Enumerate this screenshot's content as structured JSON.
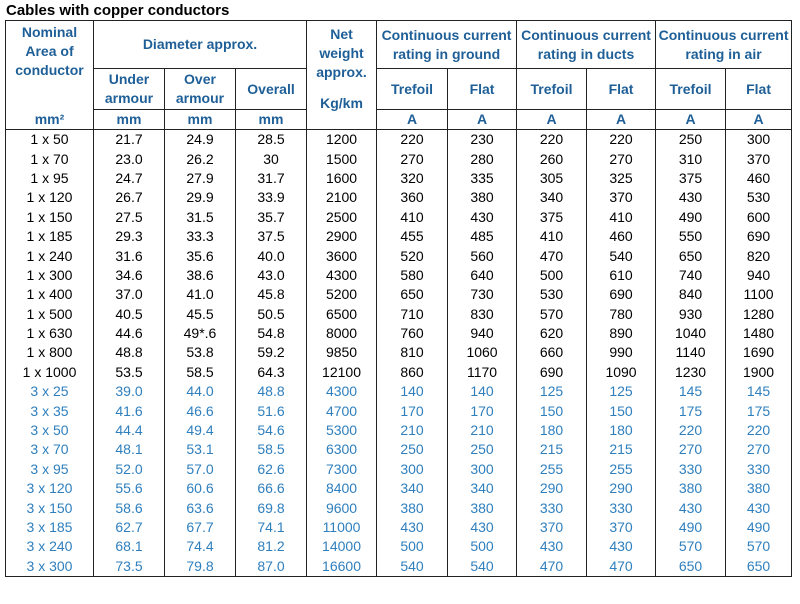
{
  "title": "Cables with copper conductors",
  "headers": {
    "nominal": "Nominal Area of conductor",
    "diameter": "Diameter approx.",
    "net_weight": "Net weight approx.",
    "ground": "Continuous current rating in ground",
    "ducts": "Continuous current rating in ducts",
    "air": "Continuous current rating in air",
    "under_armour": "Under armour",
    "over_armour": "Over armour",
    "overall": "Overall",
    "trefoil": "Trefoil",
    "flat": "Flat"
  },
  "units": [
    "mm²",
    "mm",
    "mm",
    "mm",
    "Kg/km",
    "A",
    "A",
    "A",
    "A",
    "A",
    "A"
  ],
  "rows": [
    [
      "1 x 50",
      "21.7",
      "24.9",
      "28.5",
      "1200",
      "220",
      "230",
      "220",
      "220",
      "250",
      "300"
    ],
    [
      "1 x 70",
      "23.0",
      "26.2",
      "30",
      "1500",
      "270",
      "280",
      "260",
      "270",
      "310",
      "370"
    ],
    [
      "1 x 95",
      "24.7",
      "27.9",
      "31.7",
      "1600",
      "320",
      "335",
      "305",
      "325",
      "375",
      "460"
    ],
    [
      "1 x 120",
      "26.7",
      "29.9",
      "33.9",
      "2100",
      "360",
      "380",
      "340",
      "370",
      "430",
      "530"
    ],
    [
      "1 x 150",
      "27.5",
      "31.5",
      "35.7",
      "2500",
      "410",
      "430",
      "375",
      "410",
      "490",
      "600"
    ],
    [
      "1 x 185",
      "29.3",
      "33.3",
      "37.5",
      "2900",
      "455",
      "485",
      "410",
      "460",
      "550",
      "690"
    ],
    [
      "1 x 240",
      "31.6",
      "35.6",
      "40.0",
      "3600",
      "520",
      "560",
      "470",
      "540",
      "650",
      "820"
    ],
    [
      "1 x 300",
      "34.6",
      "38.6",
      "43.0",
      "4300",
      "580",
      "640",
      "500",
      "610",
      "740",
      "940"
    ],
    [
      "1 x 400",
      "37.0",
      "41.0",
      "45.8",
      "5200",
      "650",
      "730",
      "530",
      "690",
      "840",
      "1100"
    ],
    [
      "1 x 500",
      "40.5",
      "45.5",
      "50.5",
      "6500",
      "710",
      "830",
      "570",
      "780",
      "930",
      "1280"
    ],
    [
      "1 x 630",
      "44.6",
      "49*.6",
      "54.8",
      "8000",
      "760",
      "940",
      "620",
      "890",
      "1040",
      "1480"
    ],
    [
      "1 x 800",
      "48.8",
      "53.8",
      "59.2",
      "9850",
      "810",
      "1060",
      "660",
      "990",
      "1140",
      "1690"
    ],
    [
      "1 x 1000",
      "53.5",
      "58.5",
      "64.3",
      "12100",
      "860",
      "1170",
      "690",
      "1090",
      "1230",
      "1900"
    ],
    [
      "3 x 25",
      "39.0",
      "44.0",
      "48.8",
      "4300",
      "140",
      "140",
      "125",
      "125",
      "145",
      "145"
    ],
    [
      "3 x 35",
      "41.6",
      "46.6",
      "51.6",
      "4700",
      "170",
      "170",
      "150",
      "150",
      "175",
      "175"
    ],
    [
      "3 x 50",
      "44.4",
      "49.4",
      "54.6",
      "5300",
      "210",
      "210",
      "180",
      "180",
      "220",
      "220"
    ],
    [
      "3 x 70",
      "48.1",
      "53.1",
      "58.5",
      "6300",
      "250",
      "250",
      "215",
      "215",
      "270",
      "270"
    ],
    [
      "3 x 95",
      "52.0",
      "57.0",
      "62.6",
      "7300",
      "300",
      "300",
      "255",
      "255",
      "330",
      "330"
    ],
    [
      "3 x 120",
      "55.6",
      "60.6",
      "66.6",
      "8400",
      "340",
      "340",
      "290",
      "290",
      "380",
      "380"
    ],
    [
      "3 x 150",
      "58.6",
      "63.6",
      "69.8",
      "9600",
      "380",
      "380",
      "330",
      "330",
      "430",
      "430"
    ],
    [
      "3 x 185",
      "62.7",
      "67.7",
      "74.1",
      "11000",
      "430",
      "430",
      "370",
      "370",
      "490",
      "490"
    ],
    [
      "3 x 240",
      "68.1",
      "74.4",
      "81.2",
      "14000",
      "500",
      "500",
      "430",
      "430",
      "570",
      "570"
    ],
    [
      "3 x 300",
      "73.5",
      "79.8",
      "87.0",
      "16600",
      "540",
      "540",
      "470",
      "470",
      "650",
      "650"
    ]
  ],
  "colors": {
    "header_text": "#1f5f97",
    "single_core_text": "#000000",
    "three_core_text": "#2f7fbd",
    "border": "#222222"
  }
}
